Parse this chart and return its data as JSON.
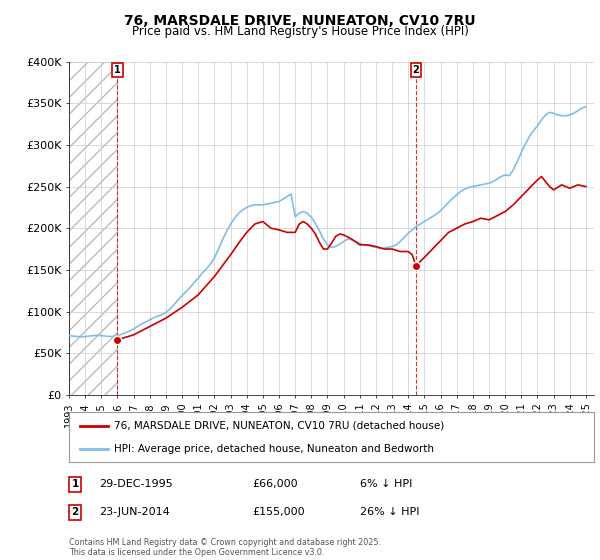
{
  "title": "76, MARSDALE DRIVE, NUNEATON, CV10 7RU",
  "subtitle": "Price paid vs. HM Land Registry's House Price Index (HPI)",
  "ylim": [
    0,
    400000
  ],
  "xlim_start": 1993,
  "xlim_end": 2025.5,
  "marker1_year": 1995.99,
  "marker1_price": 66000,
  "marker1_label": "1",
  "marker1_date": "29-DEC-1995",
  "marker1_price_str": "£66,000",
  "marker1_hpi": "6% ↓ HPI",
  "marker2_year": 2014.48,
  "marker2_price": 155000,
  "marker2_label": "2",
  "marker2_date": "23-JUN-2014",
  "marker2_price_str": "£155,000",
  "marker2_hpi": "26% ↓ HPI",
  "legend_line1": "76, MARSDALE DRIVE, NUNEATON, CV10 7RU (detached house)",
  "legend_line2": "HPI: Average price, detached house, Nuneaton and Bedworth",
  "footer": "Contains HM Land Registry data © Crown copyright and database right 2025.\nThis data is licensed under the Open Government Licence v3.0.",
  "hpi_color": "#82bce8",
  "price_color": "#cc0000",
  "background_color": "#ffffff",
  "grid_color": "#cccccc",
  "hpi_data": [
    [
      1993.0,
      71000
    ],
    [
      1993.25,
      70500
    ],
    [
      1993.5,
      70000
    ],
    [
      1993.75,
      69500
    ],
    [
      1994.0,
      70000
    ],
    [
      1994.25,
      70500
    ],
    [
      1994.5,
      71000
    ],
    [
      1994.75,
      71500
    ],
    [
      1995.0,
      71000
    ],
    [
      1995.25,
      70500
    ],
    [
      1995.5,
      70000
    ],
    [
      1995.75,
      70000
    ],
    [
      1996.0,
      71000
    ],
    [
      1996.25,
      72500
    ],
    [
      1996.5,
      74500
    ],
    [
      1996.75,
      76500
    ],
    [
      1997.0,
      79000
    ],
    [
      1997.25,
      82000
    ],
    [
      1997.5,
      85000
    ],
    [
      1997.75,
      87500
    ],
    [
      1998.0,
      90000
    ],
    [
      1998.25,
      92500
    ],
    [
      1998.5,
      94500
    ],
    [
      1998.75,
      96000
    ],
    [
      1999.0,
      99000
    ],
    [
      1999.25,
      103000
    ],
    [
      1999.5,
      108000
    ],
    [
      1999.75,
      114000
    ],
    [
      2000.0,
      119000
    ],
    [
      2000.25,
      124000
    ],
    [
      2000.5,
      129000
    ],
    [
      2000.75,
      135000
    ],
    [
      2001.0,
      140000
    ],
    [
      2001.25,
      146000
    ],
    [
      2001.5,
      151000
    ],
    [
      2001.75,
      157000
    ],
    [
      2002.0,
      164000
    ],
    [
      2002.25,
      175000
    ],
    [
      2002.5,
      186000
    ],
    [
      2002.75,
      196000
    ],
    [
      2003.0,
      205000
    ],
    [
      2003.25,
      212000
    ],
    [
      2003.5,
      218000
    ],
    [
      2003.75,
      222000
    ],
    [
      2004.0,
      225000
    ],
    [
      2004.25,
      227000
    ],
    [
      2004.5,
      228000
    ],
    [
      2004.75,
      228000
    ],
    [
      2005.0,
      228000
    ],
    [
      2005.25,
      229000
    ],
    [
      2005.5,
      230000
    ],
    [
      2005.75,
      231000
    ],
    [
      2006.0,
      232000
    ],
    [
      2006.25,
      235000
    ],
    [
      2006.5,
      238000
    ],
    [
      2006.75,
      241000
    ],
    [
      2007.0,
      214000
    ],
    [
      2007.25,
      218000
    ],
    [
      2007.5,
      220000
    ],
    [
      2007.75,
      218000
    ],
    [
      2008.0,
      213000
    ],
    [
      2008.25,
      206000
    ],
    [
      2008.5,
      197000
    ],
    [
      2008.75,
      187000
    ],
    [
      2009.0,
      180000
    ],
    [
      2009.25,
      177000
    ],
    [
      2009.5,
      178000
    ],
    [
      2009.75,
      181000
    ],
    [
      2010.0,
      184000
    ],
    [
      2010.25,
      187000
    ],
    [
      2010.5,
      186000
    ],
    [
      2010.75,
      184000
    ],
    [
      2011.0,
      182000
    ],
    [
      2011.25,
      180000
    ],
    [
      2011.5,
      179000
    ],
    [
      2011.75,
      178000
    ],
    [
      2012.0,
      177000
    ],
    [
      2012.25,
      176000
    ],
    [
      2012.5,
      176000
    ],
    [
      2012.75,
      177000
    ],
    [
      2013.0,
      178000
    ],
    [
      2013.25,
      180000
    ],
    [
      2013.5,
      184000
    ],
    [
      2013.75,
      189000
    ],
    [
      2014.0,
      194000
    ],
    [
      2014.25,
      198000
    ],
    [
      2014.5,
      202000
    ],
    [
      2014.75,
      205000
    ],
    [
      2015.0,
      208000
    ],
    [
      2015.25,
      211000
    ],
    [
      2015.5,
      214000
    ],
    [
      2015.75,
      217000
    ],
    [
      2016.0,
      221000
    ],
    [
      2016.25,
      226000
    ],
    [
      2016.5,
      231000
    ],
    [
      2016.75,
      236000
    ],
    [
      2017.0,
      240000
    ],
    [
      2017.25,
      244000
    ],
    [
      2017.5,
      247000
    ],
    [
      2017.75,
      249000
    ],
    [
      2018.0,
      250000
    ],
    [
      2018.25,
      251000
    ],
    [
      2018.5,
      252000
    ],
    [
      2018.75,
      253000
    ],
    [
      2019.0,
      254000
    ],
    [
      2019.25,
      256000
    ],
    [
      2019.5,
      259000
    ],
    [
      2019.75,
      262000
    ],
    [
      2020.0,
      264000
    ],
    [
      2020.25,
      263000
    ],
    [
      2020.5,
      270000
    ],
    [
      2020.75,
      280000
    ],
    [
      2021.0,
      291000
    ],
    [
      2021.25,
      301000
    ],
    [
      2021.5,
      310000
    ],
    [
      2021.75,
      317000
    ],
    [
      2022.0,
      323000
    ],
    [
      2022.25,
      330000
    ],
    [
      2022.5,
      336000
    ],
    [
      2022.75,
      339000
    ],
    [
      2023.0,
      338000
    ],
    [
      2023.25,
      336000
    ],
    [
      2023.5,
      335000
    ],
    [
      2023.75,
      335000
    ],
    [
      2024.0,
      336000
    ],
    [
      2024.25,
      338000
    ],
    [
      2024.5,
      341000
    ],
    [
      2024.75,
      344000
    ],
    [
      2025.0,
      346000
    ]
  ],
  "price_line_data": [
    [
      1995.99,
      66000
    ],
    [
      1997.0,
      72000
    ],
    [
      1998.0,
      82000
    ],
    [
      1999.0,
      92000
    ],
    [
      2000.0,
      105000
    ],
    [
      2001.0,
      120000
    ],
    [
      2002.0,
      142000
    ],
    [
      2003.0,
      168000
    ],
    [
      2003.5,
      182000
    ],
    [
      2004.0,
      195000
    ],
    [
      2004.5,
      205000
    ],
    [
      2005.0,
      208000
    ],
    [
      2005.5,
      200000
    ],
    [
      2006.0,
      198000
    ],
    [
      2006.5,
      195000
    ],
    [
      2007.0,
      195000
    ],
    [
      2007.25,
      205000
    ],
    [
      2007.5,
      208000
    ],
    [
      2007.75,
      205000
    ],
    [
      2008.0,
      200000
    ],
    [
      2008.25,
      193000
    ],
    [
      2008.5,
      183000
    ],
    [
      2008.75,
      175000
    ],
    [
      2009.0,
      175000
    ],
    [
      2009.25,
      182000
    ],
    [
      2009.5,
      190000
    ],
    [
      2009.75,
      193000
    ],
    [
      2010.0,
      192000
    ],
    [
      2010.5,
      187000
    ],
    [
      2011.0,
      180000
    ],
    [
      2011.5,
      180000
    ],
    [
      2012.0,
      178000
    ],
    [
      2012.5,
      175000
    ],
    [
      2013.0,
      175000
    ],
    [
      2013.5,
      172000
    ],
    [
      2014.0,
      172000
    ],
    [
      2014.25,
      168000
    ],
    [
      2014.48,
      155000
    ],
    [
      2015.0,
      165000
    ],
    [
      2015.5,
      175000
    ],
    [
      2016.0,
      185000
    ],
    [
      2016.5,
      195000
    ],
    [
      2017.0,
      200000
    ],
    [
      2017.5,
      205000
    ],
    [
      2018.0,
      208000
    ],
    [
      2018.5,
      212000
    ],
    [
      2019.0,
      210000
    ],
    [
      2019.5,
      215000
    ],
    [
      2020.0,
      220000
    ],
    [
      2020.5,
      228000
    ],
    [
      2021.0,
      238000
    ],
    [
      2021.5,
      248000
    ],
    [
      2022.0,
      258000
    ],
    [
      2022.25,
      262000
    ],
    [
      2022.5,
      256000
    ],
    [
      2022.75,
      250000
    ],
    [
      2023.0,
      246000
    ],
    [
      2023.5,
      252000
    ],
    [
      2024.0,
      248000
    ],
    [
      2024.5,
      252000
    ],
    [
      2025.0,
      250000
    ]
  ],
  "price_points": [
    [
      1995.99,
      66000
    ],
    [
      2014.48,
      155000
    ]
  ]
}
